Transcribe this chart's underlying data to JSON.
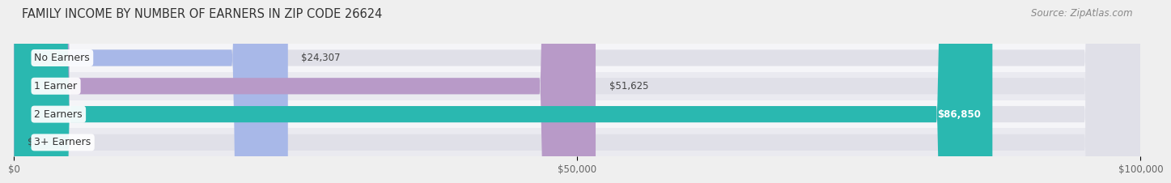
{
  "title": "FAMILY INCOME BY NUMBER OF EARNERS IN ZIP CODE 26624",
  "source": "Source: ZipAtlas.com",
  "categories": [
    "No Earners",
    "1 Earner",
    "2 Earners",
    "3+ Earners"
  ],
  "values": [
    24307,
    51625,
    86850,
    0
  ],
  "bar_colors": [
    "#a8b8e8",
    "#b89ac8",
    "#2ab8b0",
    "#b8c8f0"
  ],
  "value_labels": [
    "$24,307",
    "$51,625",
    "$86,850",
    "$0"
  ],
  "xlim": [
    0,
    100000
  ],
  "xticks": [
    0,
    50000,
    100000
  ],
  "xtick_labels": [
    "$0",
    "$50,000",
    "$100,000"
  ],
  "title_fontsize": 10.5,
  "source_fontsize": 8.5,
  "value_fontsize": 8.5,
  "cat_fontsize": 9,
  "bar_height": 0.58,
  "background_color": "#efefef",
  "bar_bg_color": "#e0e0e8",
  "row_bg_colors": [
    "#f5f5f8",
    "#eaeaf0"
  ]
}
